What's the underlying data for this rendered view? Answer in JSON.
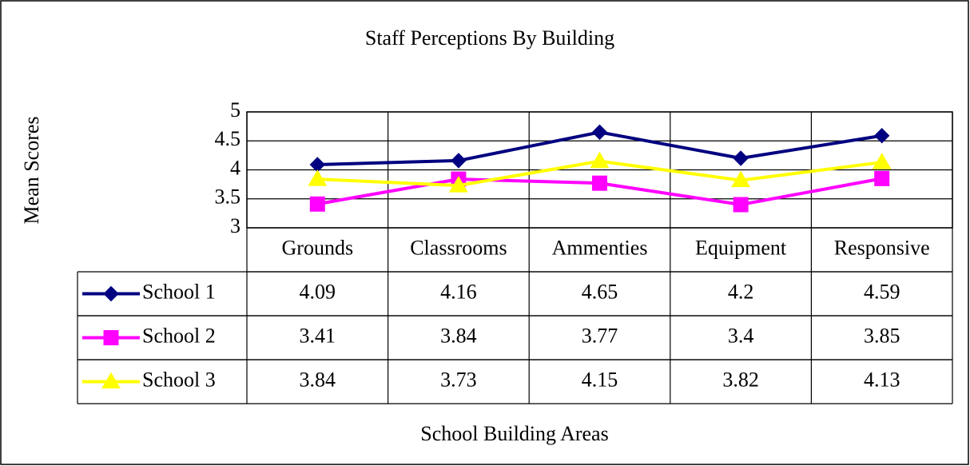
{
  "chart_data": {
    "type": "line",
    "title": "Staff Perceptions By Building",
    "x_label": "School Building Areas",
    "y_label": "Mean Scores",
    "categories": [
      "Grounds",
      "Classrooms",
      "Ammenties",
      "Equipment",
      "Responsive"
    ],
    "series": [
      {
        "name": "School 1",
        "color": "#000080",
        "marker": "diamond",
        "values": [
          4.09,
          4.16,
          4.65,
          4.2,
          4.59
        ]
      },
      {
        "name": "School 2",
        "color": "#ff00ff",
        "marker": "square",
        "values": [
          3.41,
          3.84,
          3.77,
          3.4,
          3.85
        ]
      },
      {
        "name": "School 3",
        "color": "#ffff00",
        "marker": "triangle",
        "values": [
          3.84,
          3.73,
          4.15,
          3.82,
          4.13
        ]
      }
    ],
    "ylim": [
      3,
      5
    ],
    "yticks": [
      3,
      3.5,
      4,
      4.5,
      5
    ],
    "grid": true
  }
}
